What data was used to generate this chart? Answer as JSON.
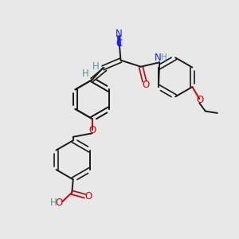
{
  "bg_color": "#e8e8e8",
  "bond_color": "#1a1a1a",
  "N_color": "#1a1aff",
  "O_color": "#cc0000",
  "H_color": "#4d9999",
  "figsize": [
    3.0,
    3.0
  ],
  "dpi": 100,
  "xlim": [
    0,
    10
  ],
  "ylim": [
    0,
    10
  ]
}
